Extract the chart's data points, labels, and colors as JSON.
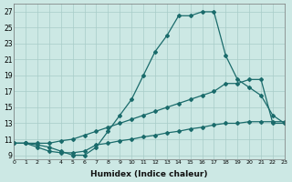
{
  "xlabel": "Humidex (Indice chaleur)",
  "background_color": "#cce8e4",
  "grid_color": "#a8ccc8",
  "line_color": "#1a6b6b",
  "xlim": [
    0,
    23
  ],
  "ylim": [
    8.5,
    28
  ],
  "xticks": [
    0,
    1,
    2,
    3,
    4,
    5,
    6,
    7,
    8,
    9,
    10,
    11,
    12,
    13,
    14,
    15,
    16,
    17,
    18,
    19,
    20,
    21,
    22,
    23
  ],
  "yticks": [
    9,
    11,
    13,
    15,
    17,
    19,
    21,
    23,
    25,
    27
  ],
  "line1_x": [
    0,
    1,
    2,
    3,
    4,
    5,
    6,
    7,
    8,
    9,
    10,
    11,
    12,
    13,
    14,
    15,
    16,
    17,
    18,
    19,
    20,
    21,
    22,
    23
  ],
  "line1_y": [
    10.5,
    10.5,
    10.3,
    10.0,
    9.5,
    9.0,
    9.0,
    10.0,
    12.0,
    14.0,
    16.0,
    19.0,
    22.0,
    24.0,
    26.5,
    26.5,
    27.0,
    27.0,
    21.5,
    18.5,
    17.5,
    16.5,
    14.0,
    13.0
  ],
  "line2_x": [
    0,
    1,
    2,
    3,
    4,
    5,
    6,
    7,
    8,
    9,
    10,
    11,
    12,
    13,
    14,
    15,
    16,
    17,
    18,
    19,
    20,
    21,
    22,
    23
  ],
  "line2_y": [
    10.5,
    10.5,
    10.5,
    10.5,
    10.8,
    11.0,
    11.5,
    12.0,
    12.5,
    13.0,
    13.5,
    14.0,
    14.5,
    15.0,
    15.5,
    16.0,
    16.5,
    17.0,
    18.0,
    18.0,
    18.5,
    18.5,
    13.0,
    13.0
  ],
  "line3_x": [
    0,
    1,
    2,
    3,
    4,
    5,
    6,
    7,
    8,
    9,
    10,
    11,
    12,
    13,
    14,
    15,
    16,
    17,
    18,
    19,
    20,
    21,
    22,
    23
  ],
  "line3_y": [
    10.5,
    10.5,
    10.0,
    9.5,
    9.3,
    9.3,
    9.5,
    10.3,
    10.5,
    10.8,
    11.0,
    11.3,
    11.5,
    11.8,
    12.0,
    12.3,
    12.5,
    12.8,
    13.0,
    13.0,
    13.2,
    13.2,
    13.2,
    13.2
  ]
}
